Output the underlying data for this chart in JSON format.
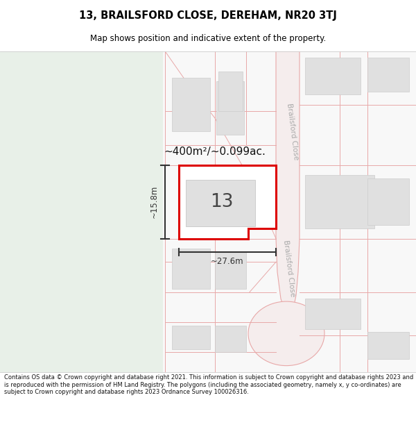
{
  "title": "13, BRAILSFORD CLOSE, DEREHAM, NR20 3TJ",
  "subtitle": "Map shows position and indicative extent of the property.",
  "footer": "Contains OS data © Crown copyright and database right 2021. This information is subject to Crown copyright and database rights 2023 and is reproduced with the permission of HM Land Registry. The polygons (including the associated geometry, namely x, y co-ordinates) are subject to Crown copyright and database rights 2023 Ordnance Survey 100026316.",
  "area_label": "~400m²/~0.099ac.",
  "width_label": "~27.6m",
  "height_label": "~15.8m",
  "plot_number": "13",
  "green_bg": "#e8f0e8",
  "white_bg": "#f8f8f8",
  "road_fill": "#f5eeee",
  "road_edge": "#e8b0b0",
  "plot_red": "#dd0000",
  "plot_fill": "#ffffff",
  "building_fill": "#e0e0e0",
  "building_edge": "#cccccc",
  "boundary_line": "#e8a8a8",
  "dim_color": "#333333",
  "street_label_color": "#aaaaaa",
  "title_color": "#000000"
}
